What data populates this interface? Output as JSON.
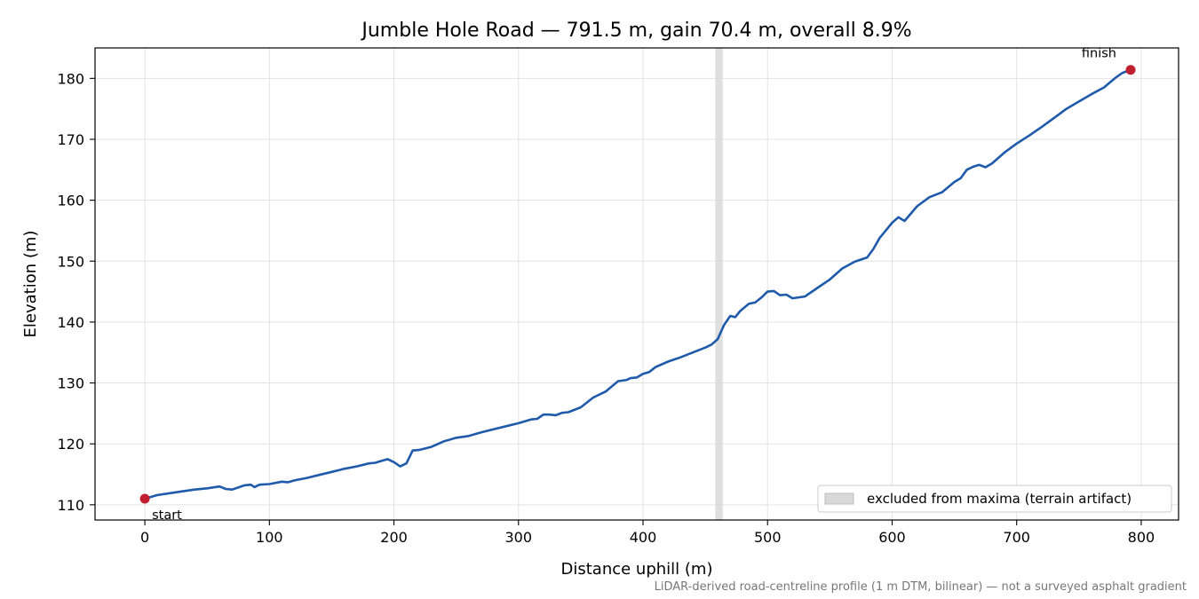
{
  "chart_data": {
    "type": "line",
    "title": "Jumble Hole Road — 791.5 m, gain 70.4 m, overall 8.9%",
    "xlabel": "Distance uphill (m)",
    "ylabel": "Elevation (m)",
    "xlim": [
      -40,
      830
    ],
    "ylim": [
      107.5,
      185
    ],
    "xticks": [
      0,
      100,
      200,
      300,
      400,
      500,
      600,
      700,
      800
    ],
    "yticks": [
      110,
      120,
      130,
      140,
      150,
      160,
      170,
      180
    ],
    "grid": true,
    "legend_position": "lower-right",
    "line_color": "#1f5aab",
    "marker_color": "#c0202e",
    "band_color": "#d9d9d9",
    "series": [
      {
        "x": [
          0,
          10,
          20,
          30,
          40,
          50,
          60,
          65,
          70,
          80,
          85,
          88,
          92,
          100,
          110,
          115,
          120,
          130,
          140,
          150,
          160,
          170,
          180,
          185,
          190,
          195,
          200,
          205,
          210,
          215,
          220,
          230,
          240,
          250,
          260,
          270,
          280,
          290,
          300,
          310,
          315,
          320,
          325,
          330,
          335,
          340,
          350,
          360,
          370,
          380,
          387,
          390,
          395,
          400,
          405,
          410,
          420,
          430,
          440,
          450,
          455,
          460,
          465,
          470,
          474,
          478,
          485,
          490,
          495,
          500,
          505,
          510,
          515,
          520,
          530,
          540,
          550,
          560,
          570,
          580,
          585,
          590,
          600,
          605,
          610,
          620,
          630,
          640,
          650,
          655,
          660,
          665,
          670,
          675,
          680,
          690,
          700,
          710,
          720,
          730,
          740,
          750,
          760,
          770,
          780,
          785,
          791.5
        ],
        "y": [
          111.0,
          111.6,
          111.9,
          112.2,
          112.5,
          112.7,
          113.0,
          112.6,
          112.5,
          113.2,
          113.3,
          112.9,
          113.3,
          113.4,
          113.8,
          113.7,
          114.0,
          114.4,
          114.9,
          115.4,
          115.9,
          116.3,
          116.8,
          116.9,
          117.2,
          117.5,
          117.0,
          116.3,
          116.8,
          118.9,
          119.0,
          119.5,
          120.4,
          121.0,
          121.3,
          121.9,
          122.4,
          122.9,
          123.4,
          124.0,
          124.1,
          124.8,
          124.8,
          124.7,
          125.1,
          125.2,
          126.0,
          127.6,
          128.6,
          130.3,
          130.5,
          130.8,
          130.9,
          131.5,
          131.8,
          132.6,
          133.5,
          134.2,
          135.0,
          135.8,
          136.3,
          137.2,
          139.5,
          141.0,
          140.8,
          141.8,
          143.0,
          143.2,
          144.0,
          145.0,
          145.1,
          144.4,
          144.5,
          143.9,
          144.2,
          145.6,
          147.0,
          148.8,
          149.9,
          150.6,
          152.0,
          153.8,
          156.3,
          157.2,
          156.6,
          159.0,
          160.5,
          161.3,
          163.0,
          163.6,
          165.0,
          165.5,
          165.8,
          165.4,
          166.0,
          167.8,
          169.3,
          170.6,
          172.0,
          173.5,
          175.0,
          176.2,
          177.4,
          178.5,
          180.2,
          180.9,
          181.4
        ]
      }
    ],
    "excluded_band": [
      458,
      464
    ],
    "legend": {
      "entries": [
        {
          "label": "excluded from maxima (terrain artifact)"
        }
      ]
    },
    "annotations": [
      {
        "text": "start",
        "x": 0,
        "y": 111.0
      },
      {
        "text": "finish",
        "x": 791.5,
        "y": 181.4
      }
    ],
    "footnote": "LiDAR-derived road-centreline profile (1 m DTM, bilinear) — not a surveyed asphalt gradient"
  }
}
